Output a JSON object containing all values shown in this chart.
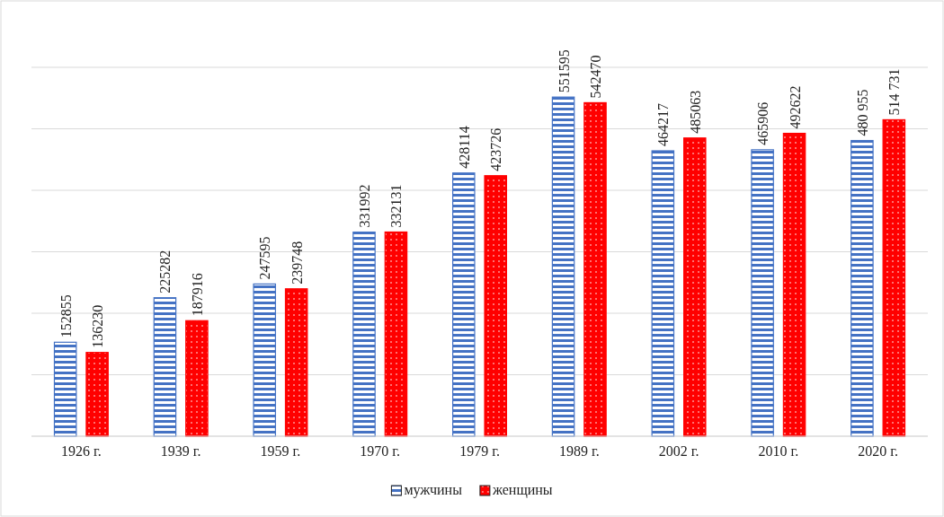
{
  "chart_data": {
    "type": "bar",
    "categories": [
      "1926 г.",
      "1939 г.",
      "1959 г.",
      "1970 г.",
      "1979 г.",
      "1989 г.",
      "2002 г.",
      "2010 г.",
      "2020 г."
    ],
    "series": [
      {
        "name": "мужчины",
        "color": "#4472c4",
        "values": [
          152855,
          225282,
          247595,
          331992,
          428114,
          551595,
          464217,
          465906,
          480955
        ],
        "value_labels": [
          "152855",
          "225282",
          "247595",
          "331992",
          "428114",
          "551595",
          "464217",
          "465906",
          "480 955"
        ]
      },
      {
        "name": "женщины",
        "color": "#ff0000",
        "values": [
          136230,
          187916,
          239748,
          332131,
          423726,
          542470,
          485063,
          492622,
          514731
        ],
        "value_labels": [
          "136230",
          "187916",
          "239748",
          "332131",
          "423726",
          "542470",
          "485063",
          "492622",
          "514 731"
        ]
      }
    ],
    "ylim": [
      0,
      600000
    ],
    "yticks": [
      {
        "value": 0,
        "label": null
      },
      {
        "value": 100000,
        "label": null
      },
      {
        "value": 200000,
        "label": null
      },
      {
        "value": 300000,
        "label": null
      },
      {
        "value": 400000,
        "label": null
      },
      {
        "value": 500000,
        "label": null
      },
      {
        "value": 600000,
        "label": null
      }
    ],
    "tick_labels": "x",
    "grid": "y",
    "legend": "bottom"
  }
}
